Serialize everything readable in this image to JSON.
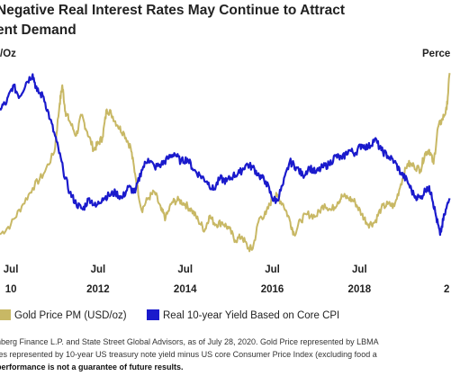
{
  "title": {
    "line1": "Negative Real Interest Rates May Continue to Attract",
    "line2": "ent Demand"
  },
  "left_axis_unit": "/Oz",
  "right_axis_unit": "Perce",
  "legend": [
    {
      "label": "Gold Price PM (USD/oz)",
      "color": "#c8b865"
    },
    {
      "label": "Real 10-year Yield Based on Core CPI",
      "color": "#1a1acc"
    }
  ],
  "footer": {
    "source1": "nberg Finance L.P. and State Street Global Advisors, as of July 28, 2020. Gold Price represented by LBMA",
    "source2": "tes represented by 10-year US treasury note yield minus US core Consumer Price Index (excluding food a",
    "disclaimer": "performance is not a guarantee of future results."
  },
  "chart_data": {
    "type": "line",
    "x_ticks": [
      {
        "top": "Jul",
        "bottom": "10",
        "x": 2010.5
      },
      {
        "top": "Jul",
        "bottom": "2012",
        "x": 2012.5
      },
      {
        "top": "Jul",
        "bottom": "2014",
        "x": 2014.5
      },
      {
        "top": "Jul",
        "bottom": "2016",
        "x": 2016.5
      },
      {
        "top": "Jul",
        "bottom": "2018",
        "x": 2018.5
      },
      {
        "top": "",
        "bottom": "2",
        "x": 2020.5
      }
    ],
    "xlim": [
      2010.25,
      2020.6
    ],
    "grid": false,
    "legend_position": "bottom",
    "series": [
      {
        "name": "Gold Price PM (USD/oz)",
        "color": "#c8b865",
        "axis": "left",
        "ylim": [
          1050,
          2000
        ],
        "x": [
          2010.25,
          2010.5,
          2010.75,
          2011.0,
          2011.25,
          2011.5,
          2011.62,
          2011.68,
          2011.75,
          2011.85,
          2012.0,
          2012.12,
          2012.25,
          2012.4,
          2012.5,
          2012.6,
          2012.7,
          2012.8,
          2012.95,
          2013.1,
          2013.25,
          2013.35,
          2013.5,
          2013.65,
          2013.8,
          2013.95,
          2014.05,
          2014.2,
          2014.35,
          2014.5,
          2014.65,
          2014.8,
          2014.95,
          2015.05,
          2015.2,
          2015.35,
          2015.5,
          2015.65,
          2015.8,
          2015.95,
          2016.05,
          2016.2,
          2016.35,
          2016.5,
          2016.6,
          2016.75,
          2016.9,
          2017.0,
          2017.15,
          2017.3,
          2017.5,
          2017.7,
          2017.85,
          2018.0,
          2018.1,
          2018.25,
          2018.4,
          2018.55,
          2018.7,
          2018.85,
          2019.0,
          2019.15,
          2019.3,
          2019.45,
          2019.6,
          2019.75,
          2019.9,
          2020.0,
          2020.1,
          2020.2,
          2020.3,
          2020.4,
          2020.5,
          2020.57
        ],
        "y": [
          1150,
          1200,
          1290,
          1380,
          1450,
          1560,
          1800,
          1890,
          1760,
          1710,
          1640,
          1740,
          1660,
          1570,
          1600,
          1630,
          1770,
          1750,
          1690,
          1650,
          1580,
          1450,
          1270,
          1330,
          1360,
          1270,
          1230,
          1310,
          1320,
          1300,
          1270,
          1220,
          1170,
          1240,
          1200,
          1210,
          1180,
          1120,
          1140,
          1080,
          1080,
          1230,
          1250,
          1330,
          1340,
          1300,
          1220,
          1150,
          1220,
          1250,
          1240,
          1300,
          1270,
          1310,
          1340,
          1330,
          1310,
          1250,
          1200,
          1210,
          1280,
          1300,
          1290,
          1400,
          1500,
          1490,
          1470,
          1550,
          1570,
          1500,
          1680,
          1720,
          1770,
          1950
        ]
      },
      {
        "name": "Real 10-year Yield Based on Core CPI",
        "color": "#1a1acc",
        "axis": "right",
        "ylim": [
          -1.1,
          2.3
        ],
        "x": [
          2010.25,
          2010.4,
          2010.55,
          2010.7,
          2010.85,
          2011.0,
          2011.1,
          2011.25,
          2011.4,
          2011.55,
          2011.7,
          2011.85,
          2012.0,
          2012.15,
          2012.3,
          2012.45,
          2012.6,
          2012.75,
          2012.9,
          2013.05,
          2013.2,
          2013.35,
          2013.5,
          2013.65,
          2013.8,
          2013.95,
          2014.1,
          2014.25,
          2014.4,
          2014.55,
          2014.7,
          2014.85,
          2015.0,
          2015.15,
          2015.3,
          2015.45,
          2015.6,
          2015.75,
          2015.9,
          2016.05,
          2016.2,
          2016.35,
          2016.5,
          2016.6,
          2016.75,
          2016.9,
          2017.05,
          2017.2,
          2017.35,
          2017.5,
          2017.65,
          2017.8,
          2017.95,
          2018.1,
          2018.25,
          2018.4,
          2018.55,
          2018.7,
          2018.85,
          2019.0,
          2019.15,
          2019.3,
          2019.45,
          2019.6,
          2019.75,
          2019.9,
          2020.05,
          2020.15,
          2020.25,
          2020.35,
          2020.45,
          2020.57
        ],
        "y": [
          1.5,
          1.6,
          1.9,
          1.7,
          1.95,
          2.1,
          1.8,
          1.7,
          1.3,
          0.9,
          0.4,
          0.0,
          -0.2,
          -0.3,
          -0.1,
          -0.25,
          -0.1,
          -0.05,
          0.0,
          -0.1,
          0.1,
          0.0,
          0.4,
          0.6,
          0.45,
          0.5,
          0.6,
          0.7,
          0.55,
          0.6,
          0.4,
          0.3,
          0.2,
          0.05,
          0.25,
          0.2,
          0.3,
          0.35,
          0.5,
          0.45,
          0.3,
          0.2,
          -0.1,
          -0.15,
          0.15,
          0.55,
          0.45,
          0.3,
          0.45,
          0.35,
          0.45,
          0.5,
          0.65,
          0.6,
          0.75,
          0.7,
          0.85,
          0.8,
          0.95,
          0.75,
          0.65,
          0.55,
          0.35,
          0.2,
          -0.05,
          -0.1,
          0.1,
          0.0,
          -0.4,
          -0.75,
          -0.4,
          -0.1
        ]
      }
    ]
  }
}
